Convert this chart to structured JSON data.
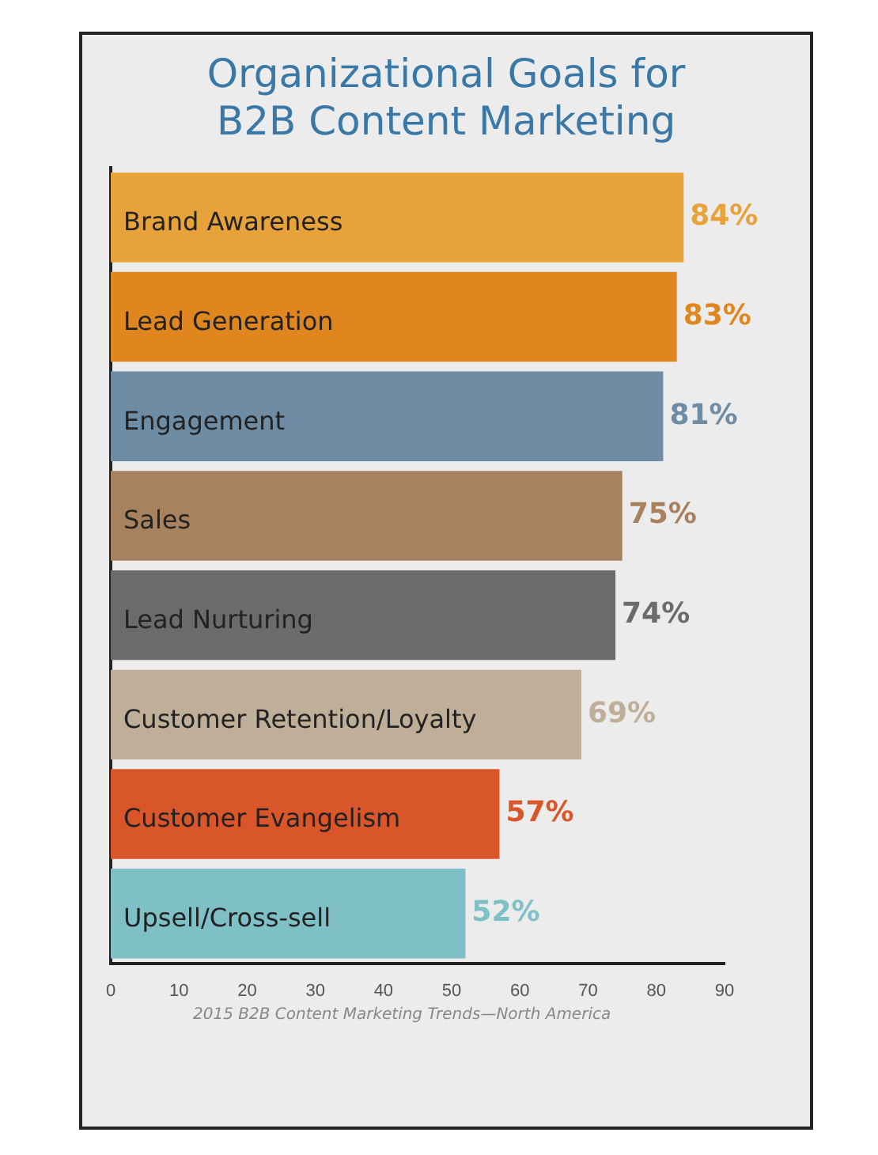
{
  "chart_data": {
    "type": "bar",
    "orientation": "horizontal",
    "title": "Organizational Goals for B2B Content Marketing",
    "categories": [
      "Brand Awareness",
      "Lead Generation",
      "Engagement",
      "Sales",
      "Lead Nurturing",
      "Customer Retention/Loyalty",
      "Customer Evangelism",
      "Upsell/Cross-sell"
    ],
    "values": [
      84,
      83,
      81,
      75,
      74,
      69,
      57,
      52
    ],
    "value_labels": [
      "84%",
      "83%",
      "81%",
      "75%",
      "74%",
      "69%",
      "57%",
      "52%"
    ],
    "colors": [
      "#e8a23a",
      "#e0861f",
      "#6e8ca3",
      "#a8825e",
      "#6b6b6b",
      "#bfae98",
      "#d9552a",
      "#7fbfc6"
    ],
    "xlim": [
      0,
      90
    ],
    "xticks": [
      0,
      10,
      20,
      30,
      40,
      50,
      60,
      70,
      80,
      90
    ],
    "annotations": [
      "2015 B2B Content Marketing Trends—North America"
    ]
  }
}
